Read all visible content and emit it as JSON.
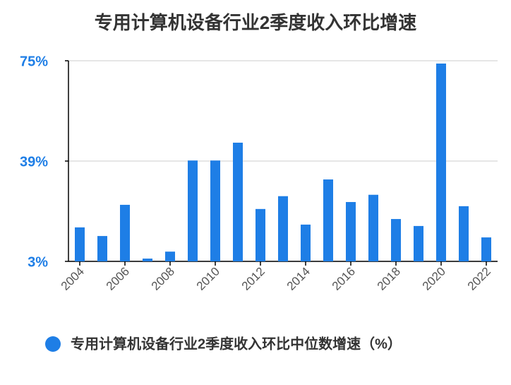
{
  "chart_data": {
    "type": "bar",
    "title": "专用计算机设备行业2季度收入环比增速",
    "categories": [
      "2004",
      null,
      "2006",
      null,
      "2008",
      null,
      "2010",
      null,
      "2012",
      null,
      "2014",
      null,
      "2016",
      null,
      "2018",
      null,
      "2020",
      null,
      "2022"
    ],
    "series": [
      {
        "name": "专用计算机设备行业2季度收入环比中位数增速（%）",
        "color": "#1e7ee6",
        "values": [
          15.2,
          12.1,
          23.3,
          4.0,
          6.5,
          39.2,
          39.2,
          45.6,
          21.8,
          26.4,
          16.2,
          32.4,
          24.3,
          26.9,
          18.2,
          15.7,
          74.0,
          22.8,
          11.6
        ]
      }
    ],
    "ylim": [
      3,
      75
    ],
    "yticks": [
      {
        "value": 3,
        "label": "3%"
      },
      {
        "value": 39,
        "label": "39%"
      },
      {
        "value": 75,
        "label": "75%"
      }
    ],
    "grid": true
  }
}
